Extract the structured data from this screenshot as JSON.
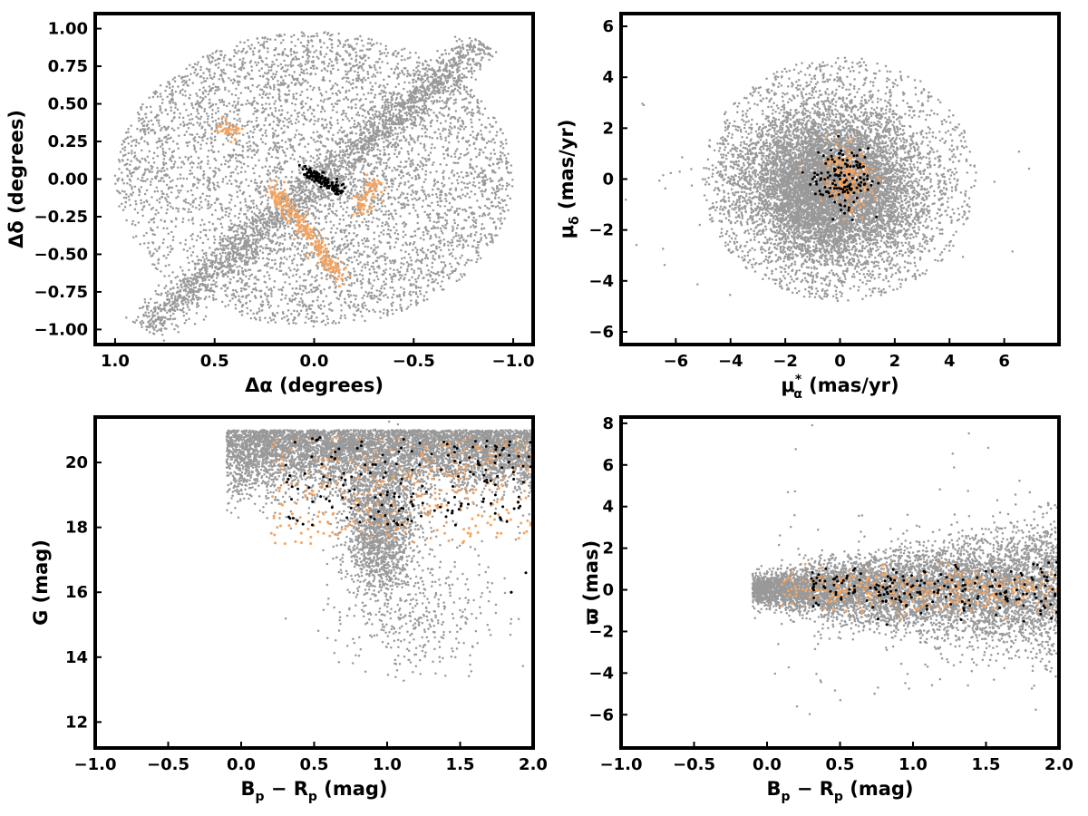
{
  "chart_data": [
    {
      "type": "scatter",
      "panel": "top-left",
      "xlabel_main": "Δα",
      "xlabel_unit": " (degrees)",
      "ylabel_main": "Δδ",
      "ylabel_unit": " (degrees)",
      "xlim": [
        1.1,
        -1.1
      ],
      "ylim": [
        -1.1,
        1.1
      ],
      "xticks": [
        1.0,
        0.5,
        0.0,
        -0.5,
        -1.0
      ],
      "xtick_labels": [
        "1.0",
        "0.5",
        "0.0",
        "−0.5",
        "−1.0"
      ],
      "yticks": [
        1.0,
        0.75,
        0.5,
        0.25,
        0.0,
        -0.25,
        -0.5,
        -0.75,
        -1.0
      ],
      "ytick_labels": [
        "1.00",
        "0.75",
        "0.50",
        "0.25",
        "0.00",
        "−0.25",
        "−0.50",
        "−0.75",
        "−1.00"
      ],
      "series": [
        {
          "color": "#999999",
          "description_points": "field stars filling a 1-degree radius circle with denser diagonal band",
          "points": [
            [
              -0.9,
              0.1
            ],
            [
              0.9,
              -0.2
            ],
            [
              0.5,
              0.7
            ],
            [
              -0.5,
              0.7
            ],
            [
              0.5,
              -0.7
            ],
            [
              -0.5,
              -0.7
            ],
            [
              0.0,
              0.95
            ],
            [
              0.0,
              -0.95
            ],
            [
              -0.3,
              -0.6
            ],
            [
              0.2,
              0.3
            ]
          ]
        },
        {
          "color": "#f4a460",
          "points": [
            [
              0.4,
              0.35
            ],
            [
              0.2,
              -0.1
            ],
            [
              0.15,
              -0.25
            ],
            [
              0.1,
              -0.4
            ],
            [
              0.05,
              -0.5
            ],
            [
              -0.05,
              -0.6
            ],
            [
              -0.15,
              -0.7
            ],
            [
              -0.25,
              -0.2
            ],
            [
              -0.3,
              0.0
            ]
          ]
        },
        {
          "color": "#000000",
          "points": [
            [
              0.0,
              0.05
            ],
            [
              -0.05,
              -0.02
            ],
            [
              -0.1,
              -0.06
            ],
            [
              0.05,
              0.03
            ],
            [
              0.02,
              0.07
            ],
            [
              -0.12,
              -0.08
            ]
          ]
        }
      ]
    },
    {
      "type": "scatter",
      "panel": "top-right",
      "xlabel_main": "μ",
      "xlabel_sub": "α",
      "xlabel_sup": "*",
      "xlabel_unit": " (mas/yr)",
      "ylabel_main": "μ",
      "ylabel_sub": "δ",
      "ylabel_unit": " (mas/yr)",
      "xlim": [
        -8,
        8
      ],
      "ylim": [
        -6.5,
        6.5
      ],
      "xticks": [
        -6,
        -4,
        -2,
        0,
        2,
        4,
        6
      ],
      "xtick_labels": [
        "−6",
        "−4",
        "−2",
        "0",
        "2",
        "4",
        "6"
      ],
      "yticks": [
        6,
        4,
        2,
        0,
        -2,
        -4,
        -6
      ],
      "ytick_labels": [
        "6",
        "4",
        "2",
        "0",
        "−2",
        "−4",
        "−6"
      ],
      "series": [
        {
          "color": "#999999",
          "points": [
            [
              0,
              0
            ],
            [
              -2,
              -1
            ],
            [
              2,
              1
            ],
            [
              -4,
              0
            ],
            [
              4,
              0
            ],
            [
              0,
              4
            ],
            [
              0,
              -4
            ]
          ]
        },
        {
          "color": "#f4a460",
          "points": [
            [
              0.5,
              0.3
            ],
            [
              -0.3,
              -0.2
            ],
            [
              0.8,
              1.0
            ],
            [
              0.3,
              -1.0
            ]
          ]
        },
        {
          "color": "#000000",
          "points": [
            [
              0,
              0
            ],
            [
              0.5,
              0.5
            ],
            [
              -0.5,
              -0.5
            ],
            [
              1,
              0
            ],
            [
              -1,
              0
            ],
            [
              0,
              1
            ],
            [
              0,
              -1
            ]
          ]
        }
      ]
    },
    {
      "type": "scatter",
      "panel": "bottom-left",
      "xlabel_main": "B",
      "xlabel_sub": "p",
      "xlabel_mid": " − R",
      "xlabel_sub2": "p",
      "xlabel_unit": " (mag)",
      "ylabel_main": "G",
      "ylabel_unit": " (mag)",
      "xlim": [
        -1.0,
        2.0
      ],
      "ylim": [
        11.2,
        21.4
      ],
      "xticks": [
        -1.0,
        -0.5,
        0.0,
        0.5,
        1.0,
        1.5,
        2.0
      ],
      "xtick_labels": [
        "−1.0",
        "−0.5",
        "0.0",
        "0.5",
        "1.0",
        "1.5",
        "2.0"
      ],
      "yticks": [
        20,
        18,
        16,
        14,
        12
      ],
      "ytick_labels": [
        "20",
        "18",
        "16",
        "14",
        "12"
      ],
      "series": [
        {
          "color": "#999999",
          "points": [
            [
              0.9,
              17.5
            ],
            [
              1.2,
              19.5
            ],
            [
              1.5,
              20.2
            ],
            [
              0.7,
              20.5
            ],
            [
              1.8,
              19.0
            ]
          ]
        },
        {
          "color": "#f4a460",
          "points": [
            [
              0.5,
              19.0
            ],
            [
              0.8,
              18.5
            ],
            [
              1.3,
              19.8
            ],
            [
              1.8,
              19.5
            ],
            [
              0.3,
              17.5
            ]
          ]
        },
        {
          "color": "#000000",
          "points": [
            [
              0.7,
              19.3
            ],
            [
              1.0,
              19.0
            ],
            [
              1.5,
              20.0
            ],
            [
              1.85,
              16.0
            ]
          ]
        }
      ]
    },
    {
      "type": "scatter",
      "panel": "bottom-right",
      "xlabel_main": "B",
      "xlabel_sub": "p",
      "xlabel_mid": " − R",
      "xlabel_sub2": "p",
      "xlabel_unit": " (mag)",
      "ylabel_main": "ϖ",
      "ylabel_unit": " (mas)",
      "xlim": [
        -1.0,
        2.0
      ],
      "ylim": [
        -7.6,
        8.3
      ],
      "xticks": [
        -1.0,
        -0.5,
        0.0,
        0.5,
        1.0,
        1.5,
        2.0
      ],
      "xtick_labels": [
        "−1.0",
        "−0.5",
        "0.0",
        "0.5",
        "1.0",
        "1.5",
        "2.0"
      ],
      "yticks": [
        8,
        6,
        4,
        2,
        0,
        -2,
        -4,
        -6
      ],
      "ytick_labels": [
        "8",
        "6",
        "4",
        "2",
        "0",
        "−2",
        "−4",
        "−6"
      ],
      "series": [
        {
          "color": "#999999",
          "points": [
            [
              0.0,
              0.0
            ],
            [
              1.0,
              0.0
            ],
            [
              1.5,
              0.3
            ],
            [
              1.9,
              -0.5
            ]
          ]
        },
        {
          "color": "#f4a460",
          "points": [
            [
              0.3,
              0.0
            ],
            [
              0.8,
              0.2
            ],
            [
              1.5,
              0.0
            ]
          ]
        },
        {
          "color": "#000000",
          "points": [
            [
              0.6,
              0.0
            ],
            [
              1.0,
              0.2
            ],
            [
              1.6,
              -0.2
            ]
          ]
        }
      ]
    }
  ]
}
